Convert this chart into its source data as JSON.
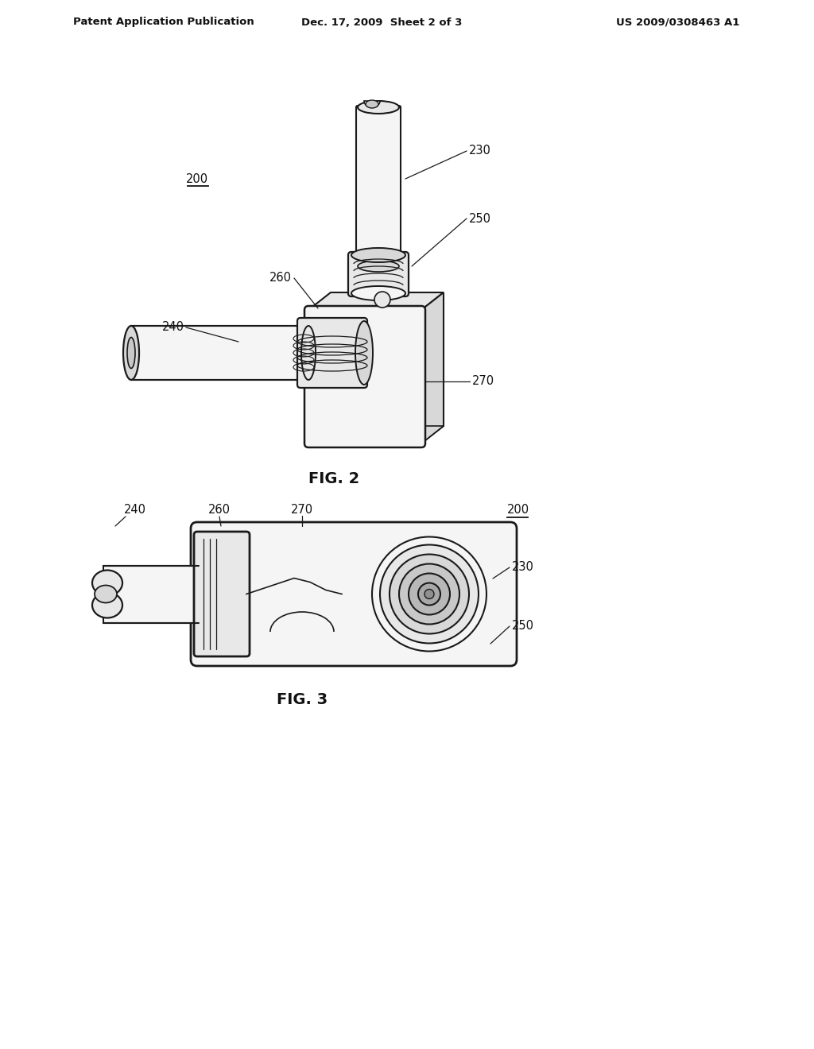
{
  "bg_color": "#ffffff",
  "header_left": "Patent Application Publication",
  "header_mid": "Dec. 17, 2009  Sheet 2 of 3",
  "header_right": "US 2009/0308463 A1",
  "fig2_label": "FIG. 2",
  "fig3_label": "FIG. 3",
  "line_color": "#1a1a1a",
  "text_color": "#111111",
  "fill_light": "#f5f5f5",
  "fill_mid": "#e8e8e8",
  "fill_dark": "#d8d8d8",
  "fill_darker": "#c8c8c8"
}
